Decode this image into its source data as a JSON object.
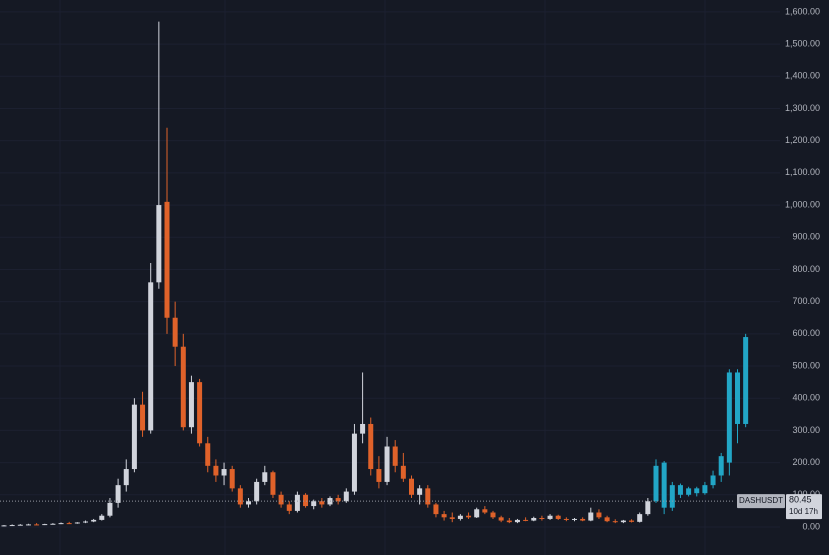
{
  "chart_data": {
    "type": "candlestick",
    "up_color": "#d1d4dc",
    "down_color": "#e0622a",
    "projection_color": "#22a6c6",
    "grid": true,
    "ylim": [
      -87,
      1637
    ],
    "yticks": [
      {
        "value": 0,
        "label": "0.00"
      },
      {
        "value": 100,
        "label": "100.00"
      },
      {
        "value": 200,
        "label": "200.00"
      },
      {
        "value": 300,
        "label": "300.00"
      },
      {
        "value": 400,
        "label": "400.00"
      },
      {
        "value": 500,
        "label": "500.00"
      },
      {
        "value": 600,
        "label": "600.00"
      },
      {
        "value": 700,
        "label": "700.00"
      },
      {
        "value": 800,
        "label": "800.00"
      },
      {
        "value": 900,
        "label": "900.00"
      },
      {
        "value": 1000,
        "label": "1,000.00"
      },
      {
        "value": 1100,
        "label": "1,100.00"
      },
      {
        "value": 1200,
        "label": "1,200.00"
      },
      {
        "value": 1300,
        "label": "1,300.00"
      },
      {
        "value": 1400,
        "label": "1,400.00"
      },
      {
        "value": 1500,
        "label": "1,500.00"
      },
      {
        "value": 1600,
        "label": "1,600.00"
      }
    ],
    "candles": {
      "open": [
        3,
        5,
        6,
        7,
        8,
        7,
        9,
        10,
        12,
        11,
        14,
        17,
        22,
        35,
        75,
        130,
        180,
        380,
        300,
        760,
        1010,
        650,
        560,
        310,
        450,
        260,
        190,
        160,
        180,
        120,
        70,
        80,
        140,
        170,
        100,
        70,
        50,
        100,
        65,
        80,
        70,
        90,
        80,
        110,
        290,
        320,
        180,
        140,
        250,
        190,
        150,
        100,
        120,
        70,
        40,
        30,
        25,
        35,
        30,
        55,
        45,
        30,
        20,
        15,
        22,
        20,
        28,
        25,
        35,
        25,
        22,
        25,
        20,
        45,
        30,
        18,
        15,
        20,
        16,
        40
      ],
      "high": [
        6,
        8,
        9,
        10,
        12,
        10,
        12,
        14,
        16,
        15,
        20,
        25,
        40,
        90,
        150,
        210,
        400,
        420,
        820,
        1570,
        1240,
        700,
        600,
        470,
        460,
        280,
        210,
        200,
        190,
        130,
        90,
        150,
        190,
        175,
        110,
        80,
        110,
        105,
        85,
        90,
        95,
        100,
        120,
        320,
        480,
        340,
        220,
        280,
        270,
        230,
        160,
        130,
        130,
        75,
        50,
        45,
        40,
        45,
        60,
        65,
        50,
        35,
        28,
        25,
        30,
        32,
        35,
        40,
        38,
        30,
        28,
        30,
        60,
        55,
        35,
        24,
        22,
        24,
        45,
        90
      ],
      "low": [
        2,
        4,
        5,
        5,
        6,
        6,
        8,
        9,
        10,
        10,
        12,
        15,
        20,
        30,
        60,
        110,
        170,
        280,
        290,
        740,
        600,
        500,
        300,
        290,
        250,
        170,
        140,
        130,
        110,
        60,
        60,
        70,
        130,
        90,
        60,
        40,
        45,
        60,
        55,
        60,
        65,
        70,
        75,
        100,
        260,
        160,
        120,
        130,
        170,
        140,
        90,
        70,
        60,
        30,
        20,
        15,
        20,
        25,
        28,
        40,
        25,
        15,
        12,
        12,
        18,
        18,
        20,
        22,
        22,
        18,
        18,
        18,
        18,
        25,
        15,
        12,
        12,
        14,
        14,
        35
      ],
      "close": [
        5,
        6,
        7,
        8,
        7,
        9,
        10,
        12,
        11,
        14,
        17,
        22,
        35,
        75,
        130,
        180,
        380,
        300,
        760,
        1000,
        650,
        560,
        310,
        450,
        260,
        190,
        160,
        180,
        120,
        70,
        80,
        140,
        170,
        100,
        70,
        50,
        100,
        65,
        80,
        70,
        90,
        80,
        110,
        290,
        320,
        180,
        140,
        250,
        190,
        150,
        100,
        120,
        70,
        40,
        30,
        25,
        35,
        30,
        55,
        45,
        30,
        20,
        15,
        22,
        20,
        28,
        25,
        35,
        25,
        22,
        25,
        20,
        45,
        30,
        18,
        15,
        20,
        16,
        40,
        80
      ]
    },
    "projection": {
      "open": [
        80,
        200,
        60,
        130,
        100,
        120,
        105,
        130,
        160,
        200,
        480,
        320
      ],
      "high": [
        210,
        205,
        140,
        135,
        125,
        125,
        140,
        175,
        230,
        490,
        490,
        600
      ],
      "low": [
        75,
        40,
        50,
        90,
        95,
        95,
        100,
        120,
        140,
        160,
        260,
        310
      ],
      "close": [
        190,
        60,
        130,
        100,
        120,
        105,
        130,
        160,
        220,
        480,
        320,
        590
      ]
    },
    "price_line": {
      "symbol": "DASHUSDT",
      "value": 80.45,
      "countdown": "10d 17h"
    }
  }
}
